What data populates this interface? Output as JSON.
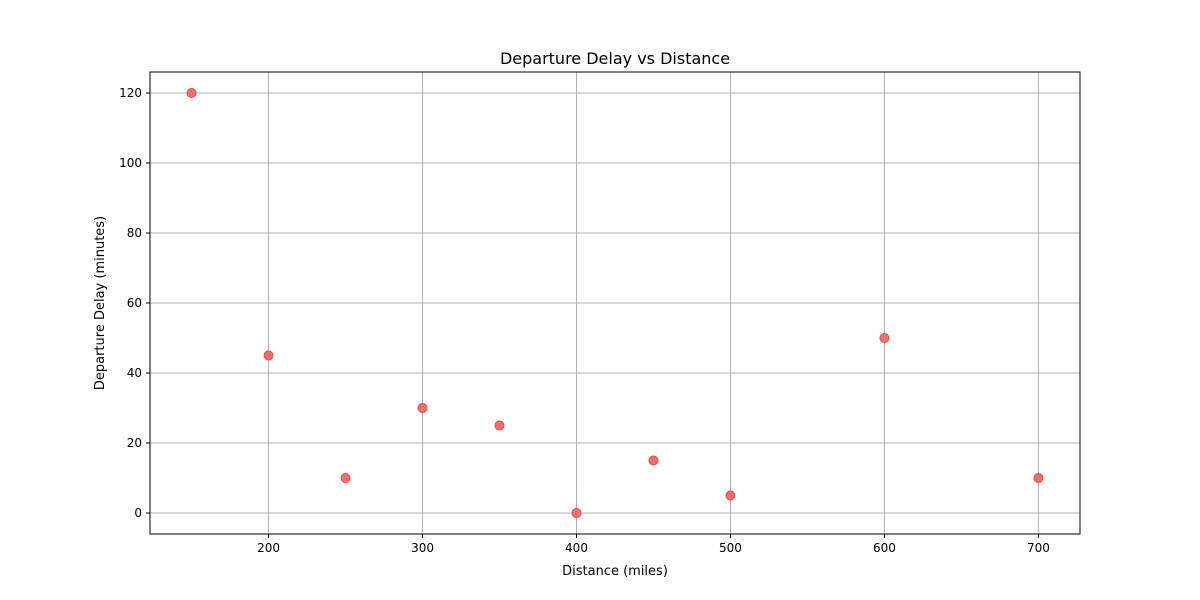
{
  "chart_data": {
    "type": "scatter",
    "title": "Departure Delay vs Distance",
    "xlabel": "Distance (miles)",
    "ylabel": "Departure Delay (minutes)",
    "xlim": [
      123,
      727
    ],
    "ylim": [
      -6,
      126
    ],
    "xticks": [
      200,
      300,
      400,
      500,
      600,
      700
    ],
    "yticks": [
      0,
      20,
      40,
      60,
      80,
      100,
      120
    ],
    "grid": true,
    "marker_color": "#f07070",
    "marker_edge_color": "#e04a4a",
    "grid_color": "#b0b0b0",
    "points": [
      {
        "x": 150,
        "y": 120
      },
      {
        "x": 200,
        "y": 45
      },
      {
        "x": 250,
        "y": 10
      },
      {
        "x": 300,
        "y": 30
      },
      {
        "x": 350,
        "y": 25
      },
      {
        "x": 400,
        "y": 0
      },
      {
        "x": 450,
        "y": 15
      },
      {
        "x": 500,
        "y": 5
      },
      {
        "x": 600,
        "y": 50
      },
      {
        "x": 700,
        "y": 10
      }
    ]
  }
}
